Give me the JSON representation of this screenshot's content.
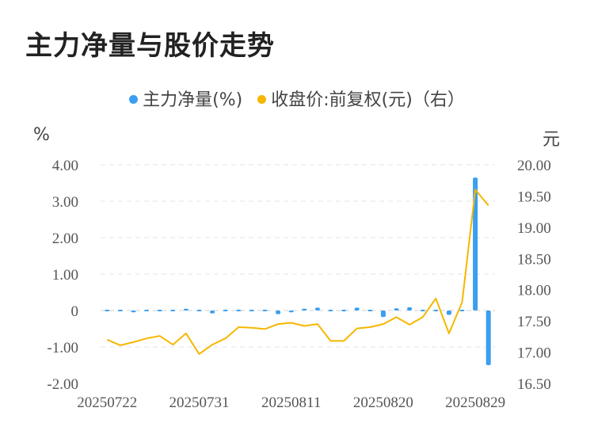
{
  "title": "主力净量与股价走势",
  "legend": {
    "net": "主力净量(%)",
    "price": "收盘价:前复权(元)（右）"
  },
  "units": {
    "left": "%",
    "right": "元"
  },
  "colors": {
    "bar": "#3a9ff0",
    "line": "#f5b700",
    "grid": "#e6e6e6"
  },
  "chart_data": {
    "type": "bar+line",
    "x": [
      "20250722",
      "20250723",
      "20250724",
      "20250725",
      "20250728",
      "20250729",
      "20250730",
      "20250731",
      "20250801",
      "20250804",
      "20250805",
      "20250806",
      "20250807",
      "20250808",
      "20250811",
      "20250812",
      "20250813",
      "20250814",
      "20250815",
      "20250818",
      "20250819",
      "20250820",
      "20250821",
      "20250822",
      "20250825",
      "20250826",
      "20250827",
      "20250828",
      "20250829",
      "20250901"
    ],
    "x_tick_labels": [
      "20250722",
      "20250731",
      "20250811",
      "20250820",
      "20250829"
    ],
    "series": [
      {
        "name": "主力净量(%)",
        "axis": "left",
        "values": [
          -0.02,
          -0.03,
          -0.05,
          -0.02,
          0.01,
          0.03,
          0.05,
          0.0,
          -0.08,
          0.0,
          0.02,
          0.01,
          -0.02,
          -0.1,
          -0.05,
          0.05,
          0.08,
          -0.01,
          0.0,
          0.08,
          0.03,
          -0.18,
          0.06,
          0.09,
          0.0,
          0.0,
          -0.12,
          0.0,
          3.65,
          -1.5
        ]
      },
      {
        "name": "收盘价:前复权(元)（右）",
        "axis": "right",
        "values": [
          17.2,
          17.11,
          17.16,
          17.22,
          17.26,
          17.12,
          17.3,
          16.97,
          17.12,
          17.22,
          17.4,
          17.39,
          17.37,
          17.45,
          17.47,
          17.42,
          17.45,
          17.18,
          17.18,
          17.38,
          17.4,
          17.45,
          17.56,
          17.44,
          17.56,
          17.86,
          17.3,
          17.8,
          19.6,
          19.35
        ]
      }
    ],
    "ylim_left": [
      -2,
      4
    ],
    "yticks_left": [
      "4.00",
      "3.00",
      "2.00",
      "1.00",
      "0",
      "-1.00",
      "-2.00"
    ],
    "ylim_right": [
      16.5,
      20
    ],
    "yticks_right": [
      "20.00",
      "19.50",
      "19.00",
      "18.50",
      "18.00",
      "17.50",
      "17.00",
      "16.50"
    ],
    "grid": "horizontal dashed"
  }
}
